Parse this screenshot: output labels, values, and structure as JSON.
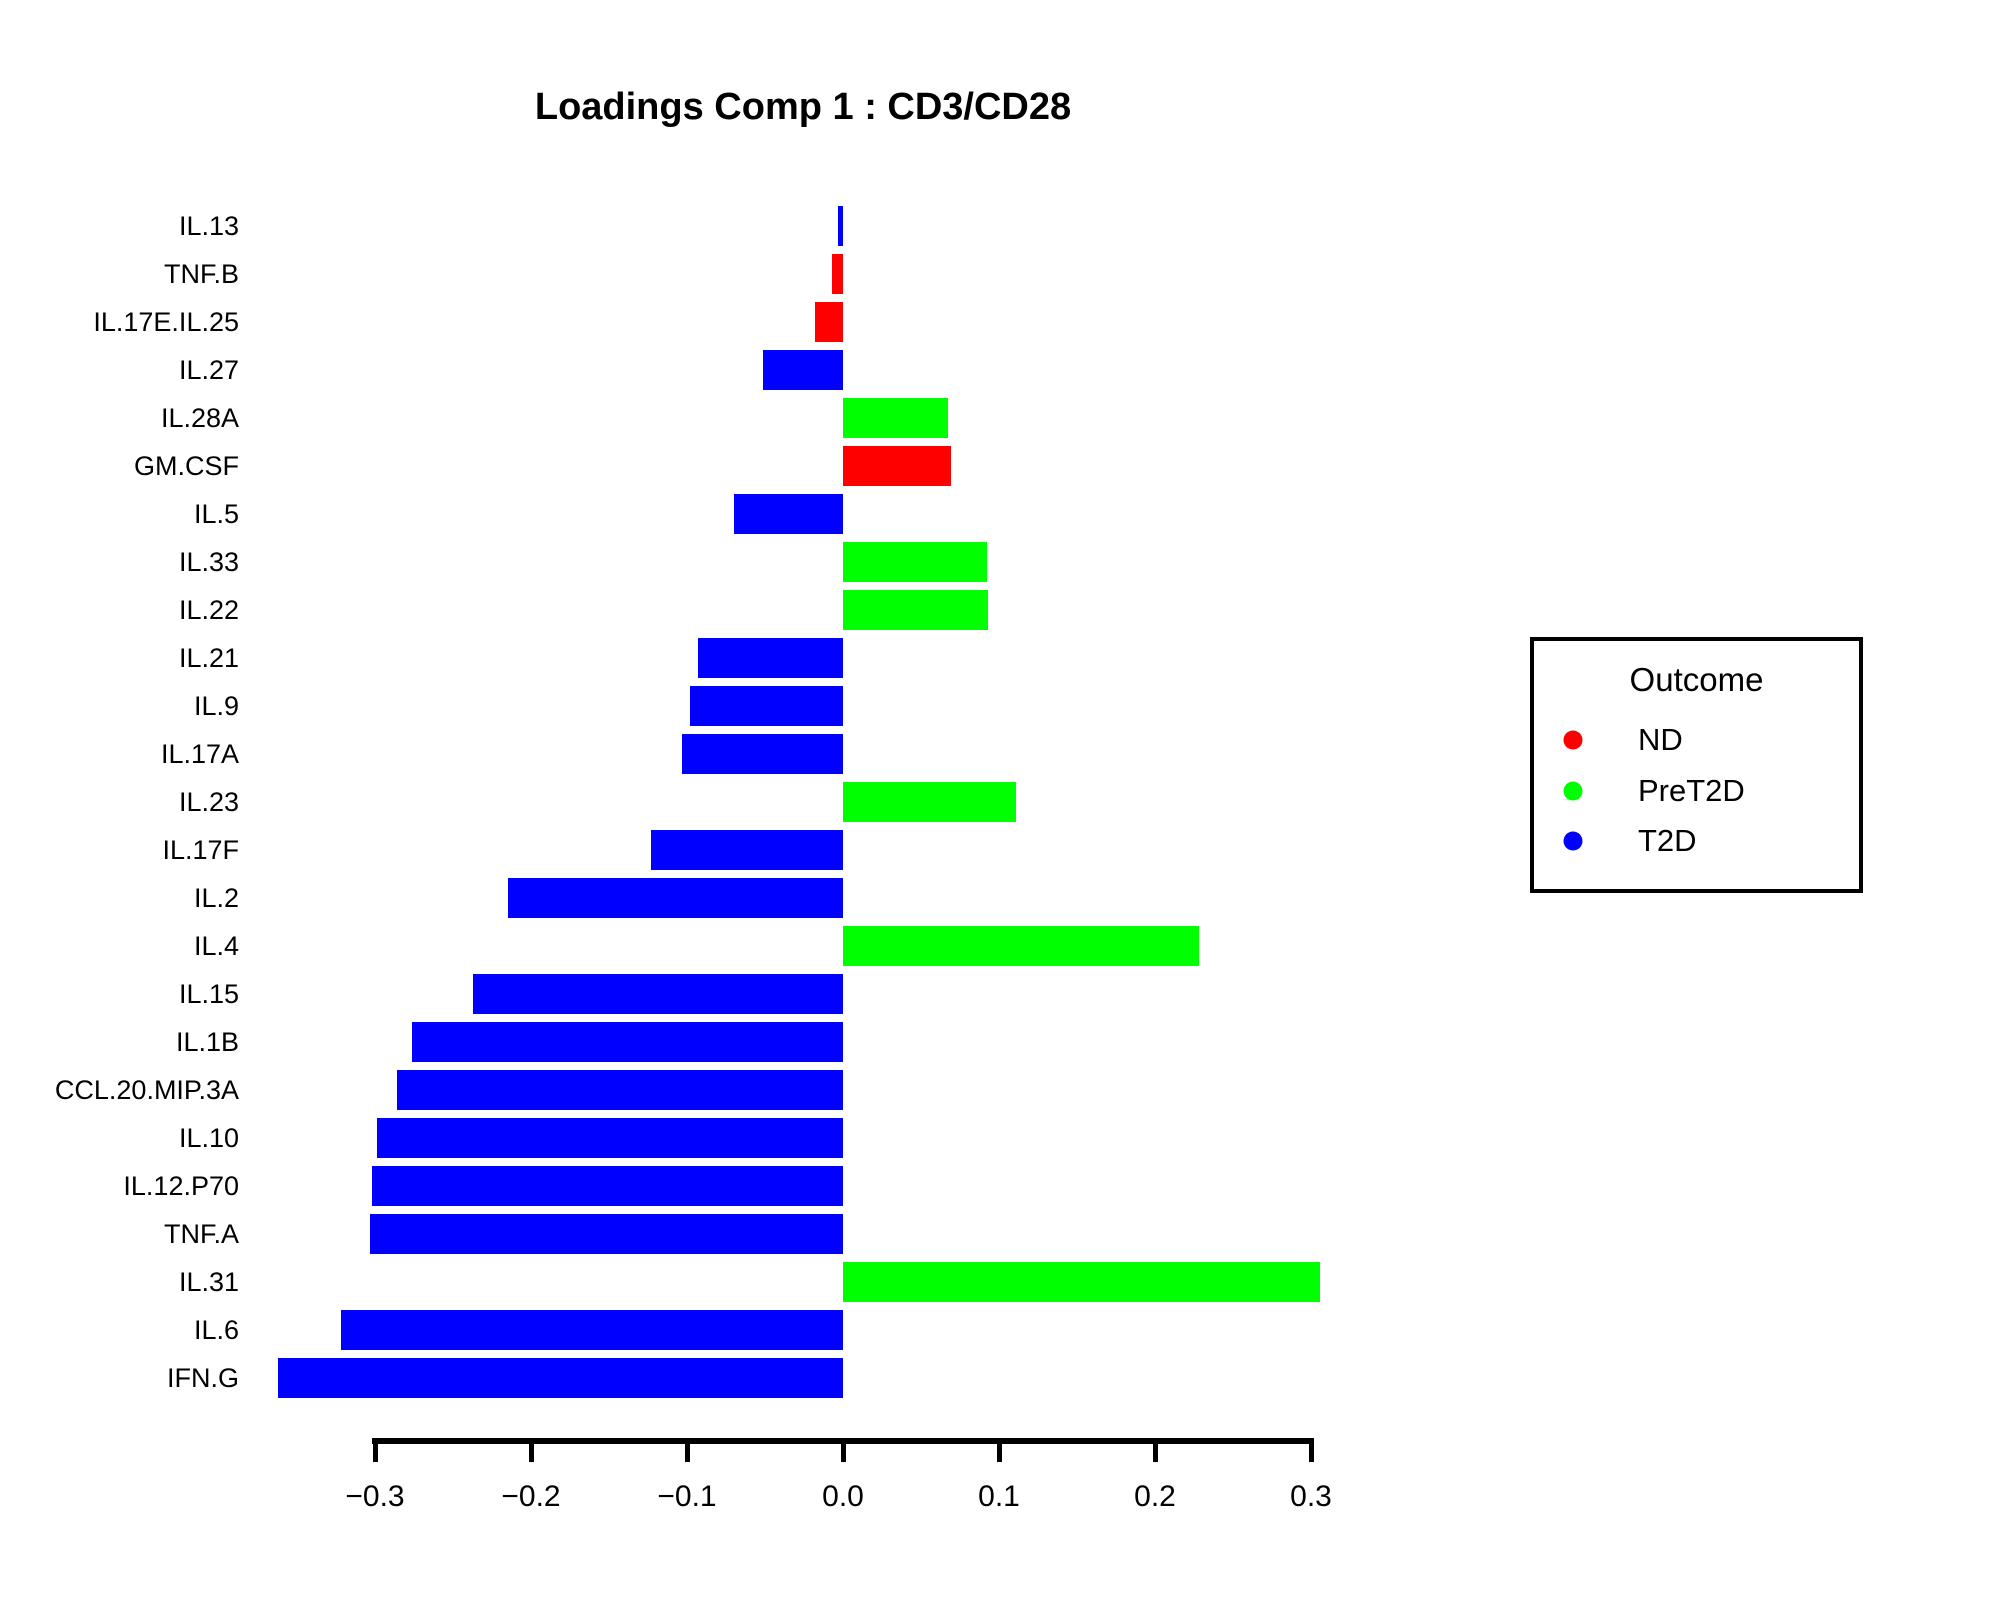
{
  "title": "Loadings Comp 1 : CD3/CD28",
  "chart_data": {
    "type": "bar",
    "orientation": "horizontal",
    "title": "Loadings Comp 1 : CD3/CD28",
    "xlabel": "",
    "ylabel": "",
    "xlim": [
      -0.3,
      0.3
    ],
    "grid": false,
    "x_tick_values": [
      -0.3,
      -0.2,
      -0.1,
      0.0,
      0.1,
      0.2,
      0.3
    ],
    "x_tick_labels": [
      "−0.3",
      "−0.2",
      "−0.1",
      "0.0",
      "0.1",
      "0.2",
      "0.3"
    ],
    "categories": [
      "IL.13",
      "TNF.B",
      "IL.17E.IL.25",
      "IL.27",
      "IL.28A",
      "GM.CSF",
      "IL.5",
      "IL.33",
      "IL.22",
      "IL.21",
      "IL.9",
      "IL.17A",
      "IL.23",
      "IL.17F",
      "IL.2",
      "IL.4",
      "IL.15",
      "IL.1B",
      "CCL.20.MIP.3A",
      "IL.10",
      "IL.12.P70",
      "TNF.A",
      "IL.31",
      "IL.6",
      "IFN.G"
    ],
    "values": [
      -0.003,
      -0.007,
      -0.018,
      -0.051,
      0.067,
      0.069,
      -0.07,
      0.092,
      0.093,
      -0.093,
      -0.098,
      -0.103,
      0.111,
      -0.123,
      -0.215,
      0.228,
      -0.237,
      -0.276,
      -0.286,
      -0.299,
      -0.302,
      -0.303,
      0.306,
      -0.322,
      -0.362
    ],
    "outcomes": [
      "T2D",
      "ND",
      "ND",
      "T2D",
      "PreT2D",
      "ND",
      "T2D",
      "PreT2D",
      "PreT2D",
      "T2D",
      "T2D",
      "T2D",
      "PreT2D",
      "T2D",
      "T2D",
      "PreT2D",
      "T2D",
      "T2D",
      "T2D",
      "T2D",
      "T2D",
      "T2D",
      "PreT2D",
      "T2D",
      "T2D"
    ],
    "outcome_colors": {
      "ND": "#FF0000",
      "PreT2D": "#00FF00",
      "T2D": "#0000FF"
    },
    "legend": {
      "title": "Outcome",
      "position": "right",
      "entries": [
        {
          "label": "ND",
          "color": "#FF0000"
        },
        {
          "label": "PreT2D",
          "color": "#00FF00"
        },
        {
          "label": "T2D",
          "color": "#0000FF"
        }
      ]
    }
  }
}
